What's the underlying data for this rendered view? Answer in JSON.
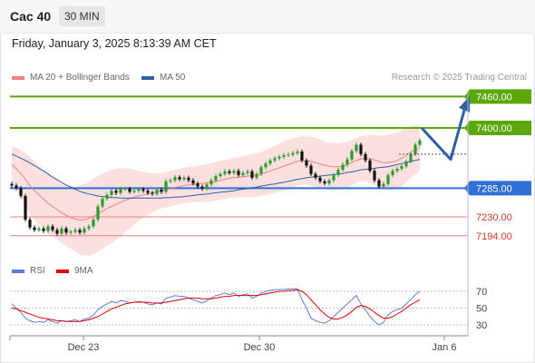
{
  "header": {
    "symbol": "Cac 40",
    "interval": "30 MIN"
  },
  "timestamp": "Friday, January 3, 2025 8:13:39 AM CET",
  "legend_main": [
    {
      "label": "MA 20 + Bollinger Bands",
      "color": "#f08080"
    },
    {
      "label": "MA 50",
      "color": "#2e5fa3"
    }
  ],
  "legend_rsi": [
    {
      "label": "RSI",
      "color": "#5b7fd6"
    },
    {
      "label": "9MA",
      "color": "#e00000"
    }
  ],
  "credit": "Research © 2025 Trading Central",
  "colors": {
    "resistance": "#5aa80c",
    "pivot": "#2f6fd6",
    "support": "#f07d7d",
    "candle_up": "#2e9b2e",
    "candle_down": "#111111",
    "band": "#fbd5d5",
    "arrow": "#2e5fa3"
  },
  "chart_data": [
    {
      "type": "candlestick",
      "ylim": [
        7170,
        7475
      ],
      "levels": [
        {
          "label": "7460.00",
          "value": 7460,
          "kind": "resistance"
        },
        {
          "label": "7400.00",
          "value": 7400,
          "kind": "resistance"
        },
        {
          "label": "7285.00",
          "value": 7285,
          "kind": "pivot"
        },
        {
          "label": "7230.00",
          "value": 7230,
          "kind": "support"
        },
        {
          "label": "7194.00",
          "value": 7194,
          "kind": "support"
        }
      ],
      "x_ticks": [
        "Dec 23",
        "Dec 30",
        "Jan 6"
      ],
      "close": [
        7290,
        7285,
        7270,
        7225,
        7210,
        7205,
        7208,
        7203,
        7212,
        7205,
        7198,
        7208,
        7200,
        7202,
        7205,
        7200,
        7208,
        7212,
        7225,
        7250,
        7265,
        7272,
        7280,
        7276,
        7284,
        7284,
        7278,
        7280,
        7283,
        7280,
        7276,
        7274,
        7282,
        7278,
        7298,
        7300,
        7306,
        7302,
        7305,
        7300,
        7294,
        7288,
        7284,
        7292,
        7300,
        7308,
        7312,
        7317,
        7314,
        7318,
        7310,
        7314,
        7317,
        7305,
        7312,
        7325,
        7332,
        7338,
        7342,
        7345,
        7348,
        7349,
        7352,
        7355,
        7338,
        7328,
        7312,
        7305,
        7298,
        7294,
        7300,
        7310,
        7320,
        7330,
        7340,
        7356,
        7368,
        7350,
        7338,
        7318,
        7300,
        7288,
        7293,
        7310,
        7318,
        7322,
        7327,
        7336,
        7350,
        7368,
        7376
      ],
      "ma20": [
        7330,
        7322,
        7313,
        7302,
        7290,
        7280,
        7272,
        7264,
        7256,
        7250,
        7244,
        7238,
        7233,
        7229,
        7226,
        7224,
        7225,
        7227,
        7231,
        7236,
        7241,
        7246,
        7250,
        7254,
        7258,
        7262,
        7265,
        7268,
        7270,
        7272,
        7274,
        7276,
        7278,
        7280,
        7282,
        7284,
        7286,
        7288,
        7290,
        7291,
        7292,
        7293,
        7294,
        7295,
        7296,
        7298,
        7300,
        7302,
        7304,
        7305,
        7306,
        7307,
        7308,
        7309,
        7310,
        7312,
        7315,
        7318,
        7321,
        7324,
        7327,
        7330,
        7333,
        7336,
        7338,
        7338,
        7336,
        7334,
        7331,
        7329,
        7327,
        7326,
        7326,
        7327,
        7330,
        7334,
        7338,
        7341,
        7342,
        7341,
        7339,
        7336,
        7334,
        7334,
        7335,
        7338,
        7342,
        7348,
        7354,
        7358,
        7362
      ],
      "band_upper": [
        7365,
        7362,
        7358,
        7352,
        7345,
        7336,
        7328,
        7320,
        7313,
        7307,
        7301,
        7296,
        7292,
        7289,
        7288,
        7290,
        7293,
        7298,
        7303,
        7308,
        7313,
        7317,
        7320,
        7322,
        7323,
        7323,
        7322,
        7320,
        7318,
        7316,
        7314,
        7313,
        7313,
        7314,
        7316,
        7318,
        7320,
        7322,
        7324,
        7325,
        7326,
        7328,
        7329,
        7331,
        7333,
        7335,
        7337,
        7339,
        7341,
        7343,
        7344,
        7346,
        7348,
        7350,
        7352,
        7354,
        7358,
        7362,
        7366,
        7370,
        7374,
        7377,
        7380,
        7382,
        7384,
        7384,
        7383,
        7381,
        7378,
        7374,
        7372,
        7371,
        7371,
        7372,
        7374,
        7377,
        7381,
        7384,
        7386,
        7387,
        7387,
        7386,
        7386,
        7387,
        7389,
        7392,
        7396,
        7400,
        7403,
        7405,
        7406
      ],
      "band_lower": [
        7295,
        7282,
        7268,
        7252,
        7235,
        7224,
        7216,
        7208,
        7199,
        7193,
        7187,
        7180,
        7174,
        7169,
        7164,
        7158,
        7157,
        7156,
        7159,
        7164,
        7169,
        7175,
        7180,
        7186,
        7193,
        7201,
        7208,
        7216,
        7222,
        7228,
        7234,
        7239,
        7243,
        7246,
        7248,
        7250,
        7252,
        7254,
        7256,
        7257,
        7258,
        7258,
        7259,
        7259,
        7259,
        7261,
        7263,
        7265,
        7267,
        7267,
        7268,
        7268,
        7268,
        7268,
        7268,
        7270,
        7272,
        7274,
        7276,
        7278,
        7280,
        7283,
        7286,
        7290,
        7292,
        7292,
        7289,
        7287,
        7284,
        7284,
        7282,
        7281,
        7281,
        7282,
        7286,
        7291,
        7295,
        7298,
        7298,
        7295,
        7291,
        7286,
        7282,
        7281,
        7281,
        7284,
        7288,
        7296,
        7305,
        7311,
        7318
      ],
      "ma50": [
        7350,
        7346,
        7342,
        7338,
        7333,
        7328,
        7323,
        7318,
        7312,
        7306,
        7301,
        7296,
        7291,
        7287,
        7283,
        7279,
        7276,
        7274,
        7272,
        7270,
        7269,
        7268,
        7267,
        7267,
        7266,
        7266,
        7266,
        7266,
        7266,
        7266,
        7266,
        7266,
        7266,
        7266,
        7267,
        7267,
        7268,
        7268,
        7269,
        7270,
        7271,
        7272,
        7273,
        7274,
        7275,
        7276,
        7277,
        7278,
        7279,
        7280,
        7282,
        7283,
        7284,
        7286,
        7287,
        7289,
        7290,
        7292,
        7293,
        7295,
        7296,
        7298,
        7300,
        7302,
        7303,
        7305,
        7306,
        7307,
        7308,
        7309,
        7310,
        7311,
        7312,
        7313,
        7315,
        7316,
        7318,
        7320,
        7321,
        7322,
        7323,
        7324,
        7325,
        7326,
        7328,
        7330,
        7332,
        7334,
        7336,
        7338,
        7340
      ],
      "projection": [
        7400,
        7340,
        7440
      ]
    },
    {
      "type": "line",
      "series": [
        {
          "name": "RSI",
          "values": [
            55,
            50,
            45,
            38,
            35,
            33,
            34,
            33,
            36,
            34,
            32,
            35,
            34,
            35,
            36,
            34,
            37,
            38,
            42,
            48,
            52,
            55,
            58,
            56,
            59,
            58,
            56,
            57,
            58,
            57,
            55,
            54,
            56,
            55,
            62,
            63,
            65,
            64,
            64,
            62,
            60,
            58,
            56,
            59,
            62,
            65,
            66,
            68,
            66,
            68,
            64,
            66,
            67,
            62,
            64,
            68,
            70,
            71,
            72,
            72,
            72,
            73,
            73,
            73,
            60,
            50,
            38,
            35,
            33,
            32,
            35,
            40,
            45,
            50,
            55,
            60,
            65,
            55,
            48,
            40,
            34,
            30,
            33,
            42,
            46,
            48,
            50,
            55,
            60,
            66,
            70
          ]
        },
        {
          "name": "9MA",
          "values": [
            50,
            49,
            47,
            45,
            43,
            41,
            39,
            38,
            37,
            36,
            35,
            35,
            34,
            34,
            34,
            34,
            35,
            36,
            38,
            40,
            43,
            46,
            49,
            51,
            53,
            55,
            56,
            57,
            57,
            57,
            57,
            56,
            56,
            56,
            57,
            58,
            59,
            60,
            61,
            62,
            62,
            62,
            61,
            61,
            61,
            62,
            63,
            64,
            64,
            65,
            65,
            65,
            65,
            65,
            65,
            66,
            67,
            68,
            69,
            70,
            70,
            71,
            71,
            72,
            70,
            66,
            60,
            54,
            48,
            43,
            39,
            37,
            37,
            39,
            42,
            46,
            51,
            53,
            52,
            49,
            45,
            41,
            38,
            38,
            40,
            43,
            46,
            50,
            54,
            57,
            60
          ]
        }
      ],
      "ylim": [
        15,
        80
      ],
      "y_ticks": [
        "70",
        "50",
        "30"
      ]
    }
  ]
}
